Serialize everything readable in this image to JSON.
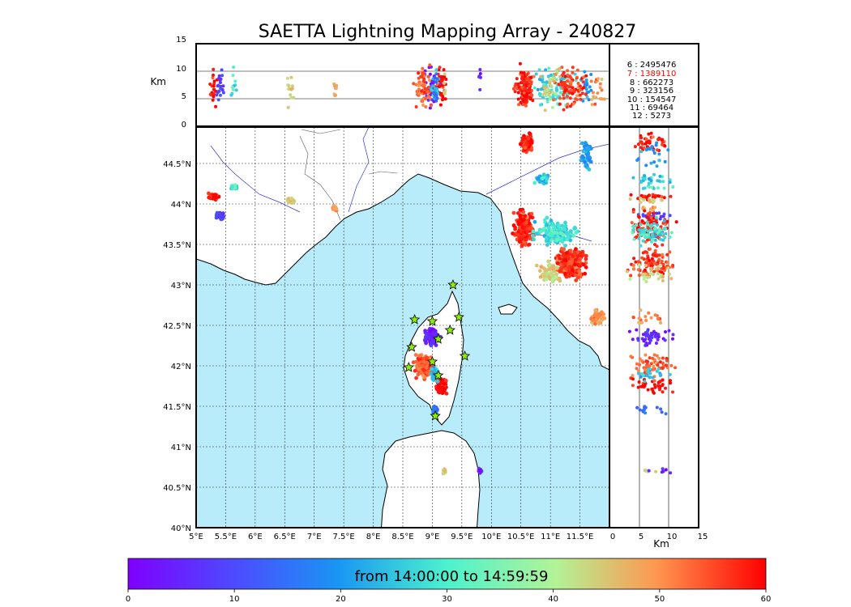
{
  "title": "SAETTA Lightning Mapping Array - 240827",
  "top_panel": {
    "ylabel": "Km",
    "yticks": [
      "15",
      "10",
      "5",
      "0"
    ],
    "ylim": [
      0,
      15
    ]
  },
  "map": {
    "xticks": [
      "5°E",
      "5.5°E",
      "6°E",
      "6.5°E",
      "7°E",
      "7.5°E",
      "8°E",
      "8.5°E",
      "9°E",
      "9.5°E",
      "10°E",
      "10.5°E",
      "11°E",
      "11.5°E"
    ],
    "yticks": [
      "44.5°N",
      "44°N",
      "43.5°N",
      "43°N",
      "42.5°N",
      "42°N",
      "41.5°N",
      "41°N",
      "40.5°N",
      "40°N"
    ],
    "lon_range": [
      5,
      12
    ],
    "lat_range": [
      40,
      44.95
    ],
    "colors": {
      "sea": "#b9ecfa",
      "land": "#ffffff",
      "coast": "#000000",
      "rivers": "#3333cc"
    }
  },
  "side_panel": {
    "xticks": [
      "0",
      "5",
      "10",
      "15"
    ],
    "xlabel": "Km",
    "xlim": [
      0,
      15
    ]
  },
  "counts": [
    {
      "label": " 6  :  2495476",
      "highlight": false
    },
    {
      "label": " 7  :  1389110",
      "highlight": true
    },
    {
      "label": " 8  :   662273",
      "highlight": false
    },
    {
      "label": " 9  :   323156",
      "highlight": false
    },
    {
      "label": "10  :   154547",
      "highlight": false
    },
    {
      "label": "11  :    69464",
      "highlight": false
    },
    {
      "label": "12  :     5273",
      "highlight": false
    }
  ],
  "colorbar": {
    "label": "from 14:00:00 to 14:59:59",
    "ticks": [
      "0",
      "10",
      "20",
      "30",
      "40",
      "50",
      "60"
    ],
    "range": [
      0,
      60
    ]
  },
  "chart_data": {
    "type": "scatter",
    "title": "SAETTA Lightning Mapping Array - 240827",
    "xlabel": "",
    "ylabel": "",
    "color_scale": {
      "range": [
        0,
        60
      ],
      "label": "from 14:00:00 to 14:59:59",
      "colormap": "rainbow"
    },
    "clusters": [
      {
        "lon": 5.3,
        "lat": 44.1,
        "spread_lon": 0.12,
        "spread_lat": 0.05,
        "t": 58,
        "n": 40
      },
      {
        "lon": 5.4,
        "lat": 43.85,
        "spread_lon": 0.1,
        "spread_lat": 0.06,
        "t": 10,
        "n": 40
      },
      {
        "lon": 5.65,
        "lat": 44.2,
        "spread_lon": 0.08,
        "spread_lat": 0.04,
        "t": 28,
        "n": 20
      },
      {
        "lon": 6.6,
        "lat": 44.05,
        "spread_lon": 0.07,
        "spread_lat": 0.06,
        "t": 44,
        "n": 25
      },
      {
        "lon": 7.35,
        "lat": 43.95,
        "spread_lon": 0.04,
        "spread_lat": 0.05,
        "t": 48,
        "n": 15
      },
      {
        "lon": 10.6,
        "lat": 44.75,
        "spread_lon": 0.15,
        "spread_lat": 0.15,
        "t": 58,
        "n": 80
      },
      {
        "lon": 10.85,
        "lat": 44.3,
        "spread_lon": 0.15,
        "spread_lat": 0.08,
        "t": 25,
        "n": 50
      },
      {
        "lon": 11.6,
        "lat": 44.6,
        "spread_lon": 0.15,
        "spread_lat": 0.2,
        "t": 20,
        "n": 40
      },
      {
        "lon": 10.55,
        "lat": 43.7,
        "spread_lon": 0.2,
        "spread_lat": 0.3,
        "t": 58,
        "n": 170
      },
      {
        "lon": 11.1,
        "lat": 43.65,
        "spread_lon": 0.5,
        "spread_lat": 0.2,
        "t": 28,
        "n": 150
      },
      {
        "lon": 11.35,
        "lat": 43.25,
        "spread_lon": 0.35,
        "spread_lat": 0.25,
        "t": 56,
        "n": 180
      },
      {
        "lon": 11.0,
        "lat": 43.15,
        "spread_lon": 0.25,
        "spread_lat": 0.15,
        "t": 44,
        "n": 60
      },
      {
        "lon": 11.8,
        "lat": 42.6,
        "spread_lon": 0.15,
        "spread_lat": 0.12,
        "t": 50,
        "n": 40
      },
      {
        "lon": 9.0,
        "lat": 42.35,
        "spread_lon": 0.17,
        "spread_lat": 0.13,
        "t": 5,
        "n": 90
      },
      {
        "lon": 8.85,
        "lat": 42.0,
        "spread_lon": 0.22,
        "spread_lat": 0.2,
        "t": 54,
        "n": 130
      },
      {
        "lon": 9.15,
        "lat": 41.75,
        "spread_lon": 0.12,
        "spread_lat": 0.12,
        "t": 60,
        "n": 80
      },
      {
        "lon": 9.05,
        "lat": 41.9,
        "spread_lon": 0.1,
        "spread_lat": 0.1,
        "t": 24,
        "n": 40
      },
      {
        "lon": 9.05,
        "lat": 41.45,
        "spread_lon": 0.08,
        "spread_lat": 0.08,
        "t": 15,
        "n": 25
      },
      {
        "lon": 9.2,
        "lat": 40.7,
        "spread_lon": 0.04,
        "spread_lat": 0.04,
        "t": 45,
        "n": 12
      },
      {
        "lon": 9.8,
        "lat": 40.7,
        "spread_lon": 0.04,
        "spread_lat": 0.04,
        "t": 5,
        "n": 12
      }
    ],
    "sensor_stations": [
      {
        "lon": 9.35,
        "lat": 43.0
      },
      {
        "lon": 8.7,
        "lat": 42.57
      },
      {
        "lon": 9.0,
        "lat": 42.55
      },
      {
        "lon": 9.45,
        "lat": 42.6
      },
      {
        "lon": 9.3,
        "lat": 42.44
      },
      {
        "lon": 9.1,
        "lat": 42.33
      },
      {
        "lon": 8.65,
        "lat": 42.23
      },
      {
        "lon": 9.55,
        "lat": 42.12
      },
      {
        "lon": 9.0,
        "lat": 42.05
      },
      {
        "lon": 8.6,
        "lat": 41.98
      },
      {
        "lon": 9.1,
        "lat": 41.88
      },
      {
        "lon": 9.05,
        "lat": 41.38
      }
    ]
  }
}
